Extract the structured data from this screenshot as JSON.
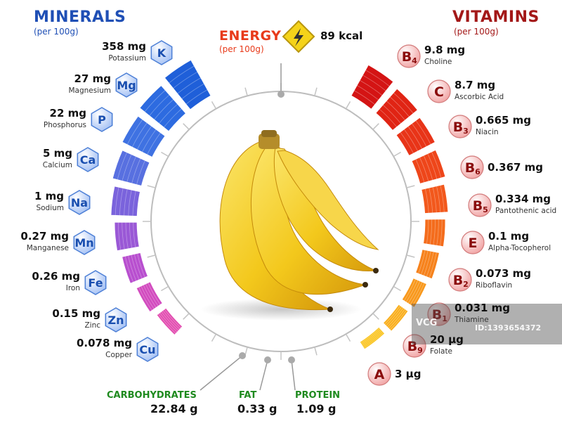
{
  "minerals": {
    "title": "MINERALS",
    "subtitle": "(per 100g)",
    "color": "#1f4fb5",
    "items": [
      {
        "symbol": "K",
        "value": "358 mg",
        "name": "Potassium",
        "color": "#1f5fd9"
      },
      {
        "symbol": "Mg",
        "value": "27 mg",
        "name": "Magnesium",
        "color": "#2d6be0"
      },
      {
        "symbol": "P",
        "value": "22 mg",
        "name": "Phosphorus",
        "color": "#3f72e2"
      },
      {
        "symbol": "Ca",
        "value": "5 mg",
        "name": "Calcium",
        "color": "#5870e0"
      },
      {
        "symbol": "Na",
        "value": "1 mg",
        "name": "Sodium",
        "color": "#7a63dc"
      },
      {
        "symbol": "Mn",
        "value": "0.27 mg",
        "name": "Manganese",
        "color": "#9a58d6"
      },
      {
        "symbol": "Fe",
        "value": "0.26 mg",
        "name": "Iron",
        "color": "#b84fcf"
      },
      {
        "symbol": "Zn",
        "value": "0.15 mg",
        "name": "Zinc",
        "color": "#d24cbf"
      },
      {
        "symbol": "Cu",
        "value": "0.078 mg",
        "name": "Copper",
        "color": "#e24db0"
      }
    ]
  },
  "vitamins": {
    "title": "VITAMINS",
    "subtitle": "(per 100g)",
    "color": "#a31818",
    "items": [
      {
        "symbol": "B",
        "sub": "4",
        "value": "9.8 mg",
        "name": "Choline",
        "color": "#d41414"
      },
      {
        "symbol": "C",
        "sub": "",
        "value": "8.7 mg",
        "name": "Ascorbic Acid",
        "color": "#e02414"
      },
      {
        "symbol": "B",
        "sub": "3",
        "value": "0.665 mg",
        "name": "Niacin",
        "color": "#e83418"
      },
      {
        "symbol": "B",
        "sub": "6",
        "value": "0.367 mg",
        "name": "",
        "color": "#ee461a"
      },
      {
        "symbol": "B",
        "sub": "5",
        "value": "0.334 mg",
        "name": "Pantothenic acid",
        "color": "#f2581c"
      },
      {
        "symbol": "E",
        "sub": "",
        "value": "0.1 mg",
        "name": "Alpha-Tocopherol",
        "color": "#f46c1c"
      },
      {
        "symbol": "B",
        "sub": "2",
        "value": "0.073 mg",
        "name": "Riboflavin",
        "color": "#f6821c"
      },
      {
        "symbol": "B",
        "sub": "1",
        "value": "0.031 mg",
        "name": "Thiamine",
        "color": "#f8981c"
      },
      {
        "symbol": "B",
        "sub": "9",
        "value": "20 µg",
        "name": "Folate",
        "color": "#f9ae1c"
      },
      {
        "symbol": "A",
        "sub": "",
        "value": "3 µg",
        "name": "",
        "color": "#fac31c"
      }
    ]
  },
  "energy": {
    "label": "ENERGY",
    "subtitle": "(per 100g)",
    "value": "89 kcal",
    "icon": "lightning-icon",
    "color": "#e83a1a"
  },
  "macros": [
    {
      "label": "CARBOHYDRATES",
      "value": "22.84 g"
    },
    {
      "label": "FAT",
      "value": "0.33 g"
    },
    {
      "label": "PROTEIN",
      "value": "1.09 g"
    }
  ],
  "watermark": {
    "text": "VCG",
    "id": "ID:1393654372"
  },
  "colors": {
    "mineral_badge_fill": "#cfe0ff",
    "vitamin_badge_fill": "#f7c9c9",
    "badge_text_mineral": "#1a4fb0",
    "badge_text_vitamin": "#8b0d0d",
    "ring": "#b9b9b9",
    "banana": "#f3c81c",
    "macro_label": "#1e8a1e"
  }
}
